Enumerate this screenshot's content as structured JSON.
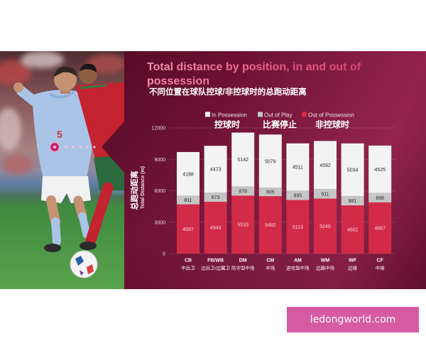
{
  "chart_data": {
    "type": "bar",
    "stacked": true,
    "title": "Total distance by position, in and out of possession",
    "subtitle": "不同位置在球队控球/非控球时的总跑动距离",
    "xlabel": "",
    "ylabel": "Total Distance (m)",
    "ylabel_cn": "总跑动距离",
    "ylim": [
      0,
      12000
    ],
    "yticks": [
      0,
      3000,
      6000,
      9000,
      12000
    ],
    "grid": true,
    "legend_position": "top",
    "categories": [
      "CB",
      "FB/WB",
      "DM",
      "CM",
      "AM",
      "WM",
      "WF",
      "CF"
    ],
    "categories_cn": [
      "中后卫",
      "边后卫/边翼卫",
      "防守型中场",
      "中场",
      "进攻型中场",
      "边路中场",
      "边锋",
      "中锋"
    ],
    "series": [
      {
        "name": "Out of Possession",
        "name_cn": "非控球时",
        "color": "#d22b47",
        "label_color": "#f9d3da",
        "values": [
          4697,
          4943,
          5533,
          5482,
          5113,
          5245,
          4602,
          4887
        ]
      },
      {
        "name": "Out of Play",
        "name_cn": "比赛停止",
        "color": "#c6c6c6",
        "label_color": "#2a2a2a",
        "values": [
          811,
          873,
          878,
          805,
          895,
          911,
          881,
          898
        ]
      },
      {
        "name": "In Possession",
        "name_cn": "控球时",
        "color": "#f3f3f3",
        "label_color": "#2a2a2a",
        "values": [
          4188,
          4473,
          5142,
          5079,
          4511,
          4592,
          5034,
          4525
        ]
      }
    ]
  },
  "photo": {
    "jersey_number": "5"
  },
  "watermark": "ledongworld.com",
  "colors": {
    "panel": "#6d1032",
    "title": "#ea6a8f",
    "watermark_bg": "#d65ba2",
    "jersey_blue": "#aac4e8",
    "jersey_red": "#c42330"
  }
}
